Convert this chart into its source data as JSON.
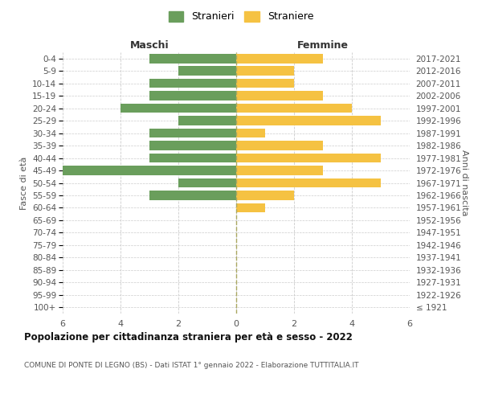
{
  "age_groups": [
    "100+",
    "95-99",
    "90-94",
    "85-89",
    "80-84",
    "75-79",
    "70-74",
    "65-69",
    "60-64",
    "55-59",
    "50-54",
    "45-49",
    "40-44",
    "35-39",
    "30-34",
    "25-29",
    "20-24",
    "15-19",
    "10-14",
    "5-9",
    "0-4"
  ],
  "birth_years": [
    "≤ 1921",
    "1922-1926",
    "1927-1931",
    "1932-1936",
    "1937-1941",
    "1942-1946",
    "1947-1951",
    "1952-1956",
    "1957-1961",
    "1962-1966",
    "1967-1971",
    "1972-1976",
    "1977-1981",
    "1982-1986",
    "1987-1991",
    "1992-1996",
    "1997-2001",
    "2002-2006",
    "2007-2011",
    "2012-2016",
    "2017-2021"
  ],
  "maschi": [
    0,
    0,
    0,
    0,
    0,
    0,
    0,
    0,
    0,
    3,
    2,
    6,
    3,
    3,
    3,
    2,
    4,
    3,
    3,
    2,
    3
  ],
  "femmine": [
    0,
    0,
    0,
    0,
    0,
    0,
    0,
    0,
    1,
    2,
    5,
    3,
    5,
    3,
    1,
    5,
    4,
    3,
    2,
    2,
    3
  ],
  "color_maschi": "#6a9e5c",
  "color_femmine": "#f5c242",
  "title": "Popolazione per cittadinanza straniera per età e sesso - 2022",
  "subtitle": "COMUNE DI PONTE DI LEGNO (BS) - Dati ISTAT 1° gennaio 2022 - Elaborazione TUTTITALIA.IT",
  "xlabel_left": "Maschi",
  "xlabel_right": "Femmine",
  "ylabel_left": "Fasce di età",
  "ylabel_right": "Anni di nascita",
  "legend_maschi": "Stranieri",
  "legend_femmine": "Straniere",
  "xlim": 6,
  "bg_color": "#ffffff",
  "grid_color": "#cccccc",
  "bar_height": 0.75
}
